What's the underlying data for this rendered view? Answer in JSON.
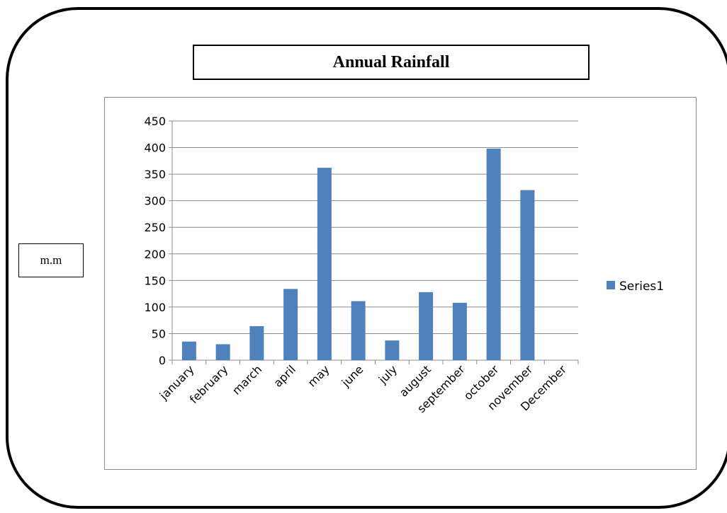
{
  "title": "Annual Rainfall",
  "unit_label": "m.m",
  "chart_data": {
    "type": "bar",
    "title": "Annual Rainfall",
    "ylabel": "m.m",
    "xlabel": "",
    "categories": [
      "january",
      "february",
      "march",
      "april",
      "may",
      "june",
      "july",
      "august",
      "september",
      "october",
      "november",
      "December"
    ],
    "series": [
      {
        "name": "Series1",
        "color": "#4f81bd",
        "values": [
          35,
          30,
          64,
          134,
          362,
          111,
          37,
          128,
          108,
          398,
          320,
          0
        ]
      }
    ],
    "ylim": [
      0,
      450
    ],
    "yticks": [
      "0",
      "50",
      "100",
      "150",
      "200",
      "250",
      "300",
      "350",
      "400",
      "450"
    ],
    "grid": true,
    "legend": "right"
  }
}
